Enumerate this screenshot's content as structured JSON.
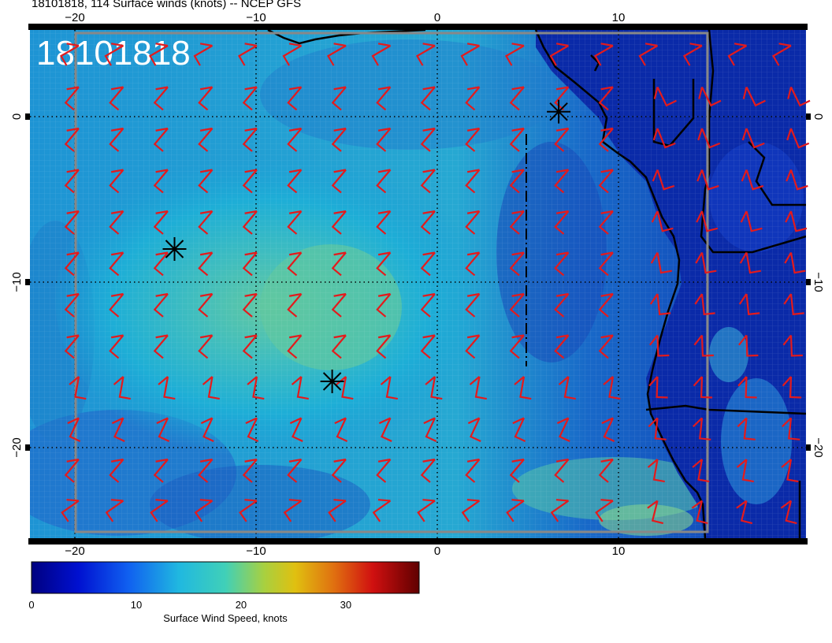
{
  "title": "18101818, 114 Surface winds (knots) -- NCEP GFS",
  "stamp": "18101818",
  "x_ticks": [
    {
      "value": -20,
      "label": "−20"
    },
    {
      "value": -10,
      "label": "−10"
    },
    {
      "value": 0,
      "label": "0"
    },
    {
      "value": 10,
      "label": "10"
    }
  ],
  "y_ticks": [
    {
      "value": 0,
      "label": "0"
    },
    {
      "value": -10,
      "label": "−10"
    },
    {
      "value": -20,
      "label": "−20"
    }
  ],
  "colorbar": {
    "ticks": [
      {
        "value": 0,
        "label": "0"
      },
      {
        "value": 10,
        "label": "10"
      },
      {
        "value": 20,
        "label": "20"
      },
      {
        "value": 30,
        "label": "30"
      }
    ],
    "min": 0,
    "max": 37,
    "label": "Surface Wind Speed, knots"
  },
  "colors": {
    "barb": "#e41a1c",
    "ocean_low": "#1030b0",
    "ocean_mid": "#1aa8d8",
    "ocean_high": "#58c8a0",
    "land": "#0a28a0"
  },
  "markers": [
    {
      "name": "storm-marker-1",
      "lon": -14.5,
      "lat": -8
    },
    {
      "name": "storm-marker-2",
      "lon": -5.8,
      "lat": -16
    },
    {
      "name": "storm-marker-3",
      "lon": 6.7,
      "lat": 0.3
    }
  ]
}
